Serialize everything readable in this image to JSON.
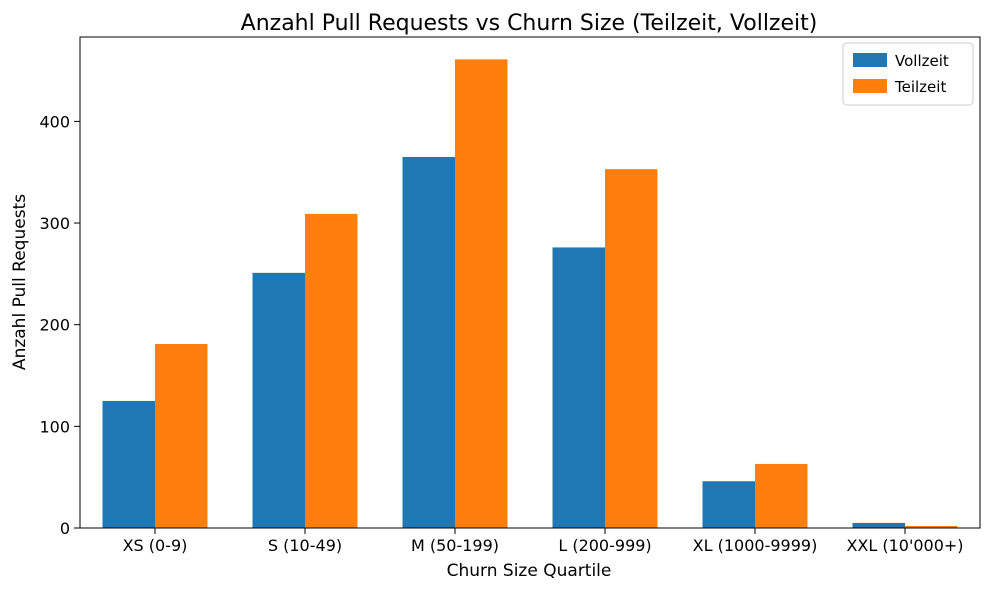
{
  "chart_data": {
    "type": "bar",
    "title": "Anzahl Pull Requests vs Churn Size (Teilzeit, Vollzeit)",
    "xlabel": "Churn Size Quartile",
    "ylabel": "Anzahl Pull Requests",
    "categories": [
      "XS (0-9)",
      "S (10-49)",
      "M (50-199)",
      "L (200-999)",
      "XL (1000-9999)",
      "XXL (10'000+)"
    ],
    "series": [
      {
        "name": "Vollzeit",
        "color": "#1f77b4",
        "values": [
          125,
          251,
          365,
          276,
          46,
          5
        ]
      },
      {
        "name": "Teilzeit",
        "color": "#ff7f0e",
        "values": [
          181,
          309,
          461,
          353,
          63,
          2
        ]
      }
    ],
    "ylim": [
      0,
      483
    ],
    "yticks": [
      0,
      100,
      200,
      300,
      400
    ],
    "grid": false,
    "legend_position": "top-right"
  }
}
